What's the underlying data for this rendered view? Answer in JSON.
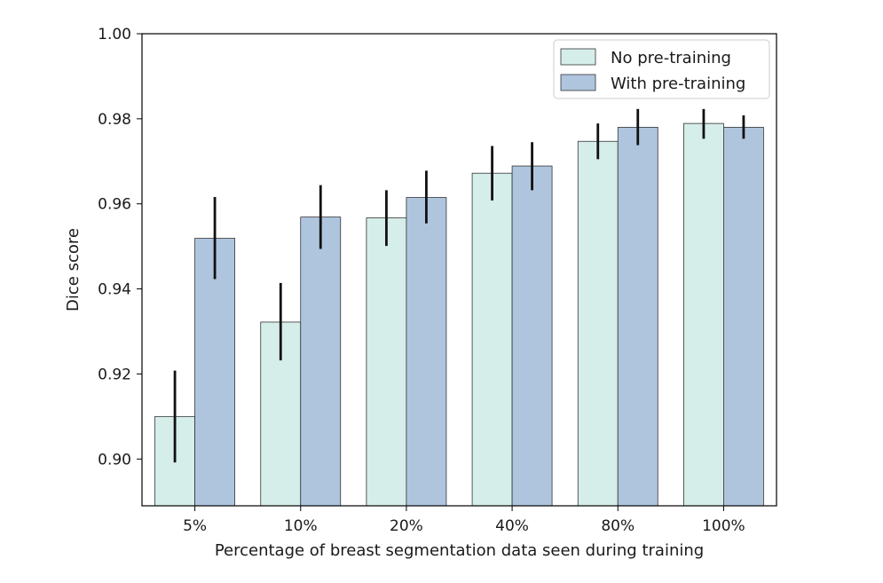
{
  "chart_data": {
    "type": "bar",
    "title": "",
    "xlabel": "Percentage of breast segmentation data seen during training",
    "ylabel": "Dice score",
    "ylim": [
      0.889,
      1.0
    ],
    "yticks": [
      0.9,
      0.92,
      0.94,
      0.96,
      0.98,
      1.0
    ],
    "ytick_labels": [
      "0.90",
      "0.92",
      "0.94",
      "0.96",
      "0.98",
      "1.00"
    ],
    "categories": [
      "5%",
      "10%",
      "20%",
      "40%",
      "80%",
      "100%"
    ],
    "grid": false,
    "legend_position": "top-right",
    "series": [
      {
        "name": "No pre-training",
        "color": "#d6eee9",
        "values": [
          0.91,
          0.9322,
          0.9567,
          0.9672,
          0.9747,
          0.9789
        ],
        "error_low": [
          0.8992,
          0.9232,
          0.9501,
          0.9608,
          0.9705,
          0.9753
        ],
        "error_high": [
          0.9208,
          0.9414,
          0.9632,
          0.9736,
          0.9789,
          0.9823
        ]
      },
      {
        "name": "With pre-training",
        "color": "#afc5de",
        "values": [
          0.9519,
          0.9569,
          0.9615,
          0.9689,
          0.978,
          0.978
        ],
        "error_low": [
          0.9423,
          0.9494,
          0.9554,
          0.9632,
          0.9738,
          0.9753
        ],
        "error_high": [
          0.9616,
          0.9644,
          0.9678,
          0.9745,
          0.9823,
          0.9808
        ]
      }
    ]
  }
}
